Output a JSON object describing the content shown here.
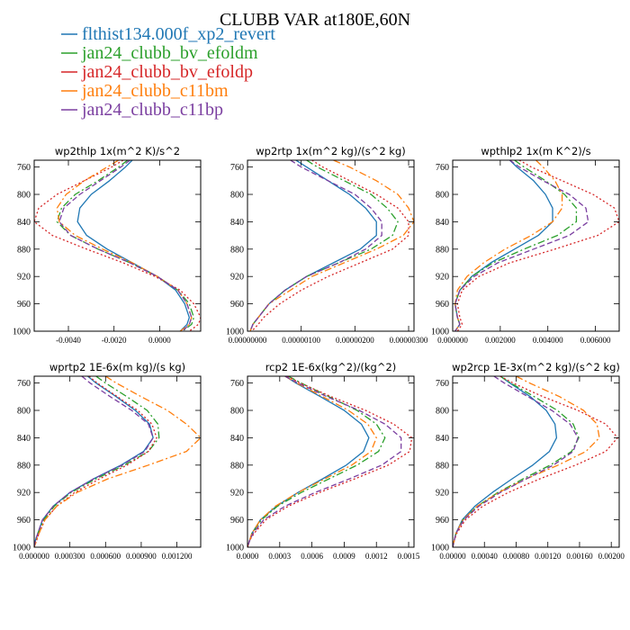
{
  "figure": {
    "title": "CLUBB VAR at180E,60N"
  },
  "colors": {
    "flthist134.000f_xp2_revert": "#1f77b4",
    "jan24_clubb_bv_efoldm": "#2ca02c",
    "jan24_clubb_bv_efoldp": "#d62728",
    "jan24_clubb_c11bm": "#ff7f0e",
    "jan24_clubb_c11bp": "#7b3fa0"
  },
  "legend": [
    {
      "label": "flthist134.000f_xp2_revert",
      "color": "#1f77b4",
      "dash": "solid"
    },
    {
      "label": "jan24_clubb_bv_efoldm",
      "color": "#2ca02c",
      "dash": "dashdot"
    },
    {
      "label": "jan24_clubb_bv_efoldp",
      "color": "#d62728",
      "dash": "dot"
    },
    {
      "label": "jan24_clubb_c11bm",
      "color": "#ff7f0e",
      "dash": "dashdot"
    },
    {
      "label": "jan24_clubb_c11bp",
      "color": "#7b3fa0",
      "dash": "dash"
    }
  ],
  "chart_data": [
    {
      "type": "line",
      "title": "wp2thlp  1x(m^2 K)/s^2",
      "xlim": [
        -0.0055,
        0.0018
      ],
      "xticks": [
        -0.004,
        -0.002,
        0.0
      ],
      "xtick_labels": [
        "-0.0040",
        "-0.0020",
        "0.0000"
      ],
      "ylim": [
        1000,
        750
      ],
      "yticks": [
        760,
        800,
        840,
        880,
        920,
        960,
        1000
      ],
      "y": [
        750,
        760,
        780,
        800,
        820,
        840,
        860,
        880,
        900,
        920,
        940,
        960,
        980,
        990,
        1000
      ],
      "series": [
        {
          "name": "flthist134.000f_xp2_revert",
          "values": [
            -0.0012,
            -0.0015,
            -0.0022,
            -0.003,
            -0.0035,
            -0.0036,
            -0.0032,
            -0.0023,
            -0.0012,
            -0.0001,
            0.0007,
            0.0011,
            0.0013,
            0.0012,
            0.0009
          ]
        },
        {
          "name": "jan24_clubb_bv_efoldm",
          "values": [
            -0.0014,
            -0.0018,
            -0.0027,
            -0.0037,
            -0.0043,
            -0.0045,
            -0.0039,
            -0.0027,
            -0.0013,
            -0.0001,
            0.0008,
            0.0013,
            0.0015,
            0.0014,
            0.001
          ]
        },
        {
          "name": "jan24_clubb_bv_efoldp",
          "values": [
            -0.0016,
            -0.0021,
            -0.0033,
            -0.0045,
            -0.0053,
            -0.0055,
            -0.0047,
            -0.0032,
            -0.0016,
            -0.0002,
            0.0009,
            0.0015,
            0.0018,
            0.0017,
            0.0013
          ]
        },
        {
          "name": "jan24_clubb_c11bm",
          "values": [
            -0.0018,
            -0.0023,
            -0.0033,
            -0.0041,
            -0.0045,
            -0.0044,
            -0.0037,
            -0.0025,
            -0.0012,
            -0.0001,
            0.0008,
            0.0012,
            0.0014,
            0.0013,
            0.0009
          ]
        },
        {
          "name": "jan24_clubb_c11bp",
          "values": [
            -0.0013,
            -0.0017,
            -0.0026,
            -0.0035,
            -0.0042,
            -0.0044,
            -0.0039,
            -0.0027,
            -0.0013,
            -0.0001,
            0.0008,
            0.0012,
            0.0014,
            0.0013,
            0.001
          ]
        }
      ]
    },
    {
      "type": "line",
      "title": "wp2rtp  1x(m^2 kg)/(s^2 kg)",
      "xlim": [
        0.0,
        3.1e-06
      ],
      "xticks": [
        0.0,
        1e-06,
        2e-06,
        3e-06
      ],
      "xtick_labels": [
        "0.00000000",
        "0.00000100",
        "0.00000200",
        "0.00000300"
      ],
      "ylim": [
        1000,
        750
      ],
      "yticks": [
        760,
        800,
        840,
        880,
        920,
        960,
        1000
      ],
      "y": [
        750,
        760,
        780,
        800,
        820,
        840,
        860,
        880,
        900,
        920,
        940,
        960,
        980,
        990,
        1000
      ],
      "series": [
        {
          "name": "flthist134.000f_xp2_revert",
          "values": [
            9e-07,
            1.1e-06,
            1.5e-06,
            1.9e-06,
            2.2e-06,
            2.4e-06,
            2.4e-06,
            2.1e-06,
            1.6e-06,
            1.1e-06,
            7e-07,
            4e-07,
            2e-07,
            1e-07,
            5e-08
          ]
        },
        {
          "name": "jan24_clubb_bv_efoldm",
          "values": [
            1.1e-06,
            1.3e-06,
            1.8e-06,
            2.3e-06,
            2.6e-06,
            2.8e-06,
            2.7e-06,
            2.3e-06,
            1.7e-06,
            1.1e-06,
            7e-07,
            4e-07,
            2e-07,
            1e-07,
            5e-08
          ]
        },
        {
          "name": "jan24_clubb_bv_efoldp",
          "values": [
            1.2e-06,
            1.4e-06,
            1.9e-06,
            2.4e-06,
            2.8e-06,
            3e-06,
            3e-06,
            2.7e-06,
            2.1e-06,
            1.5e-06,
            1e-06,
            6e-07,
            3e-07,
            2e-07,
            8e-08
          ]
        },
        {
          "name": "jan24_clubb_c11bm",
          "values": [
            1.6e-06,
            1.9e-06,
            2.4e-06,
            2.8e-06,
            3e-06,
            3.1e-06,
            2.9e-06,
            2.4e-06,
            1.8e-06,
            1.2e-06,
            8e-07,
            4e-07,
            2e-07,
            1e-07,
            5e-08
          ]
        },
        {
          "name": "jan24_clubb_c11bp",
          "values": [
            8e-07,
            1e-06,
            1.5e-06,
            2e-06,
            2.3e-06,
            2.5e-06,
            2.5e-06,
            2.2e-06,
            1.7e-06,
            1.1e-06,
            7e-07,
            4e-07,
            2e-07,
            1e-07,
            5e-08
          ]
        }
      ]
    },
    {
      "type": "line",
      "title": "wpthlp2  1x(m K^2)/s",
      "xlim": [
        0.0,
        0.007
      ],
      "xticks": [
        0.0,
        0.002,
        0.004,
        0.006
      ],
      "xtick_labels": [
        "0.000000",
        "0.002000",
        "0.004000",
        "0.006000"
      ],
      "ylim": [
        1000,
        750
      ],
      "yticks": [
        760,
        800,
        840,
        880,
        920,
        960,
        1000
      ],
      "y": [
        750,
        760,
        780,
        800,
        820,
        840,
        860,
        880,
        900,
        920,
        940,
        960,
        980,
        990,
        1000
      ],
      "series": [
        {
          "name": "flthist134.000f_xp2_revert",
          "values": [
            0.0024,
            0.0027,
            0.0034,
            0.0039,
            0.0042,
            0.0042,
            0.0036,
            0.0026,
            0.0016,
            0.0008,
            0.0003,
            0.0001,
            0.0002,
            0.0003,
            0.0001
          ]
        },
        {
          "name": "jan24_clubb_bv_efoldm",
          "values": [
            0.0026,
            0.003,
            0.0039,
            0.0047,
            0.0052,
            0.0052,
            0.0044,
            0.003,
            0.0017,
            0.0008,
            0.0003,
            0.0001,
            0.0002,
            0.0003,
            0.0001
          ]
        },
        {
          "name": "jan24_clubb_bv_efoldp",
          "values": [
            0.0028,
            0.0033,
            0.0046,
            0.0059,
            0.0068,
            0.007,
            0.0061,
            0.0043,
            0.0024,
            0.0011,
            0.0004,
            0.0002,
            0.0003,
            0.0004,
            0.0002
          ]
        },
        {
          "name": "jan24_clubb_c11bm",
          "values": [
            0.0035,
            0.0038,
            0.0043,
            0.0046,
            0.0046,
            0.0042,
            0.0033,
            0.0022,
            0.0013,
            0.0006,
            0.0002,
            0.0001,
            0.0002,
            0.0003,
            0.0001
          ]
        },
        {
          "name": "jan24_clubb_c11bp",
          "values": [
            0.0024,
            0.0028,
            0.0038,
            0.0049,
            0.0056,
            0.0057,
            0.0049,
            0.0034,
            0.0019,
            0.0009,
            0.0003,
            0.0001,
            0.0002,
            0.0003,
            0.0001
          ]
        }
      ]
    },
    {
      "type": "line",
      "title": "wprtp2  1E-6x(m kg)/(s kg)",
      "xlim": [
        0.0,
        0.0014
      ],
      "xticks": [
        0.0,
        0.0003,
        0.0006,
        0.0009,
        0.0012
      ],
      "xtick_labels": [
        "0.000000",
        "0.000300",
        "0.000600",
        "0.000900",
        "0.001200"
      ],
      "ylim": [
        1000,
        750
      ],
      "yticks": [
        760,
        800,
        840,
        880,
        920,
        960,
        1000
      ],
      "y": [
        750,
        760,
        780,
        800,
        820,
        840,
        860,
        880,
        900,
        920,
        940,
        960,
        980,
        990,
        1000
      ],
      "series": [
        {
          "name": "flthist134.000f_xp2_revert",
          "values": [
            0.00045,
            0.00052,
            0.00069,
            0.00085,
            0.00097,
            0.001,
            0.00092,
            0.00073,
            0.0005,
            0.0003,
            0.00016,
            7e-05,
            3e-05,
            1e-05,
            0.0
          ]
        },
        {
          "name": "jan24_clubb_bv_efoldm",
          "values": [
            0.00052,
            0.0006,
            0.00078,
            0.00095,
            0.00104,
            0.00105,
            0.00096,
            0.00076,
            0.00052,
            0.00031,
            0.00017,
            8e-05,
            3e-05,
            1e-05,
            0.0
          ]
        },
        {
          "name": "jan24_clubb_bv_efoldp",
          "values": [
            0.00046,
            0.00053,
            0.0007,
            0.00087,
            0.00099,
            0.00103,
            0.00096,
            0.00078,
            0.00055,
            0.00034,
            0.00019,
            9e-05,
            4e-05,
            2e-05,
            0.0
          ]
        },
        {
          "name": "jan24_clubb_c11bm",
          "values": [
            0.0006,
            0.00069,
            0.0009,
            0.00112,
            0.00128,
            0.0014,
            0.00128,
            0.00096,
            0.00062,
            0.00036,
            0.00019,
            9e-05,
            4e-05,
            2e-05,
            0.0
          ]
        },
        {
          "name": "jan24_clubb_c11bp",
          "values": [
            0.0004,
            0.00047,
            0.00064,
            0.00082,
            0.00096,
            0.001,
            0.00093,
            0.00074,
            0.0005,
            0.0003,
            0.00016,
            7e-05,
            3e-05,
            1e-05,
            0.0
          ]
        }
      ]
    },
    {
      "type": "line",
      "title": "rcp2  1E-6x(kg^2)/(kg^2)",
      "xlim": [
        0.0,
        0.00155
      ],
      "xticks": [
        0.0,
        0.0003,
        0.0006,
        0.0009,
        0.0012,
        0.0015
      ],
      "xtick_labels": [
        "0.0000",
        "0.0003",
        "0.0006",
        "0.0009",
        "0.0012",
        "0.0015"
      ],
      "ylim": [
        1000,
        750
      ],
      "yticks": [
        760,
        800,
        840,
        880,
        920,
        960,
        1000
      ],
      "y": [
        750,
        760,
        780,
        800,
        820,
        840,
        860,
        880,
        900,
        920,
        940,
        960,
        980,
        990,
        1000
      ],
      "series": [
        {
          "name": "flthist134.000f_xp2_revert",
          "values": [
            0.00035,
            0.00045,
            0.00068,
            0.0009,
            0.00106,
            0.00113,
            0.00108,
            0.00092,
            0.0007,
            0.00047,
            0.00027,
            0.00012,
            4e-05,
            2e-05,
            0.0
          ]
        },
        {
          "name": "jan24_clubb_bv_efoldm",
          "values": [
            0.00038,
            0.0005,
            0.00076,
            0.00102,
            0.0012,
            0.00128,
            0.00122,
            0.00102,
            0.00076,
            0.0005,
            0.00028,
            0.00013,
            4e-05,
            2e-05,
            0.0
          ]
        },
        {
          "name": "jan24_clubb_bv_efoldp",
          "values": [
            0.00037,
            0.00049,
            0.00078,
            0.0011,
            0.00136,
            0.00153,
            0.00151,
            0.00131,
            0.001,
            0.00067,
            0.00038,
            0.00017,
            6e-05,
            2e-05,
            0.0
          ]
        },
        {
          "name": "jan24_clubb_c11bm",
          "values": [
            0.00035,
            0.00046,
            0.0007,
            0.00094,
            0.00112,
            0.0012,
            0.00115,
            0.00097,
            0.00072,
            0.00047,
            0.00026,
            0.00012,
            4e-05,
            2e-05,
            0.0
          ]
        },
        {
          "name": "jan24_clubb_c11bp",
          "values": [
            0.00035,
            0.00047,
            0.00074,
            0.00104,
            0.00128,
            0.00143,
            0.00143,
            0.00125,
            0.00095,
            0.00063,
            0.00035,
            0.00015,
            5e-05,
            2e-05,
            0.0
          ]
        }
      ]
    },
    {
      "type": "line",
      "title": "wp2rcp  1E-3x(m^2 kg)/(s^2 kg)",
      "xlim": [
        0.0,
        0.0021
      ],
      "xticks": [
        0.0,
        0.0004,
        0.0008,
        0.0012,
        0.0016,
        0.002
      ],
      "xtick_labels": [
        "0.00000",
        "0.00040",
        "0.00080",
        "0.00120",
        "0.00160",
        "0.00200"
      ],
      "ylim": [
        1000,
        750
      ],
      "yticks": [
        760,
        800,
        840,
        880,
        920,
        960,
        1000
      ],
      "y": [
        750,
        760,
        780,
        800,
        820,
        840,
        860,
        880,
        900,
        920,
        940,
        960,
        980,
        990,
        1000
      ],
      "series": [
        {
          "name": "flthist134.000f_xp2_revert",
          "values": [
            0.0006,
            0.00072,
            0.00098,
            0.00118,
            0.00129,
            0.00131,
            0.00122,
            0.00101,
            0.00075,
            0.0005,
            0.00028,
            0.00012,
            4e-05,
            2e-05,
            0.0
          ]
        },
        {
          "name": "jan24_clubb_bv_efoldm",
          "values": [
            0.0006,
            0.00073,
            0.00103,
            0.00132,
            0.00152,
            0.00159,
            0.0015,
            0.00123,
            0.00089,
            0.00057,
            0.00031,
            0.00013,
            4e-05,
            2e-05,
            0.0
          ]
        },
        {
          "name": "jan24_clubb_bv_efoldp",
          "values": [
            0.0006,
            0.00076,
            0.00114,
            0.00158,
            0.00193,
            0.00208,
            0.00193,
            0.00155,
            0.0011,
            0.0007,
            0.00038,
            0.00016,
            5e-05,
            2e-05,
            0.0
          ]
        },
        {
          "name": "jan24_clubb_c11bm",
          "values": [
            0.0008,
            0.00097,
            0.00135,
            0.00165,
            0.00182,
            0.00185,
            0.00168,
            0.00133,
            0.00093,
            0.00058,
            0.00031,
            0.00013,
            4e-05,
            2e-05,
            0.0
          ]
        },
        {
          "name": "jan24_clubb_c11bp",
          "values": [
            0.00052,
            0.00065,
            0.00095,
            0.00125,
            0.00148,
            0.00158,
            0.00152,
            0.00127,
            0.00093,
            0.0006,
            0.00033,
            0.00014,
            4e-05,
            2e-05,
            0.0
          ]
        }
      ]
    }
  ]
}
